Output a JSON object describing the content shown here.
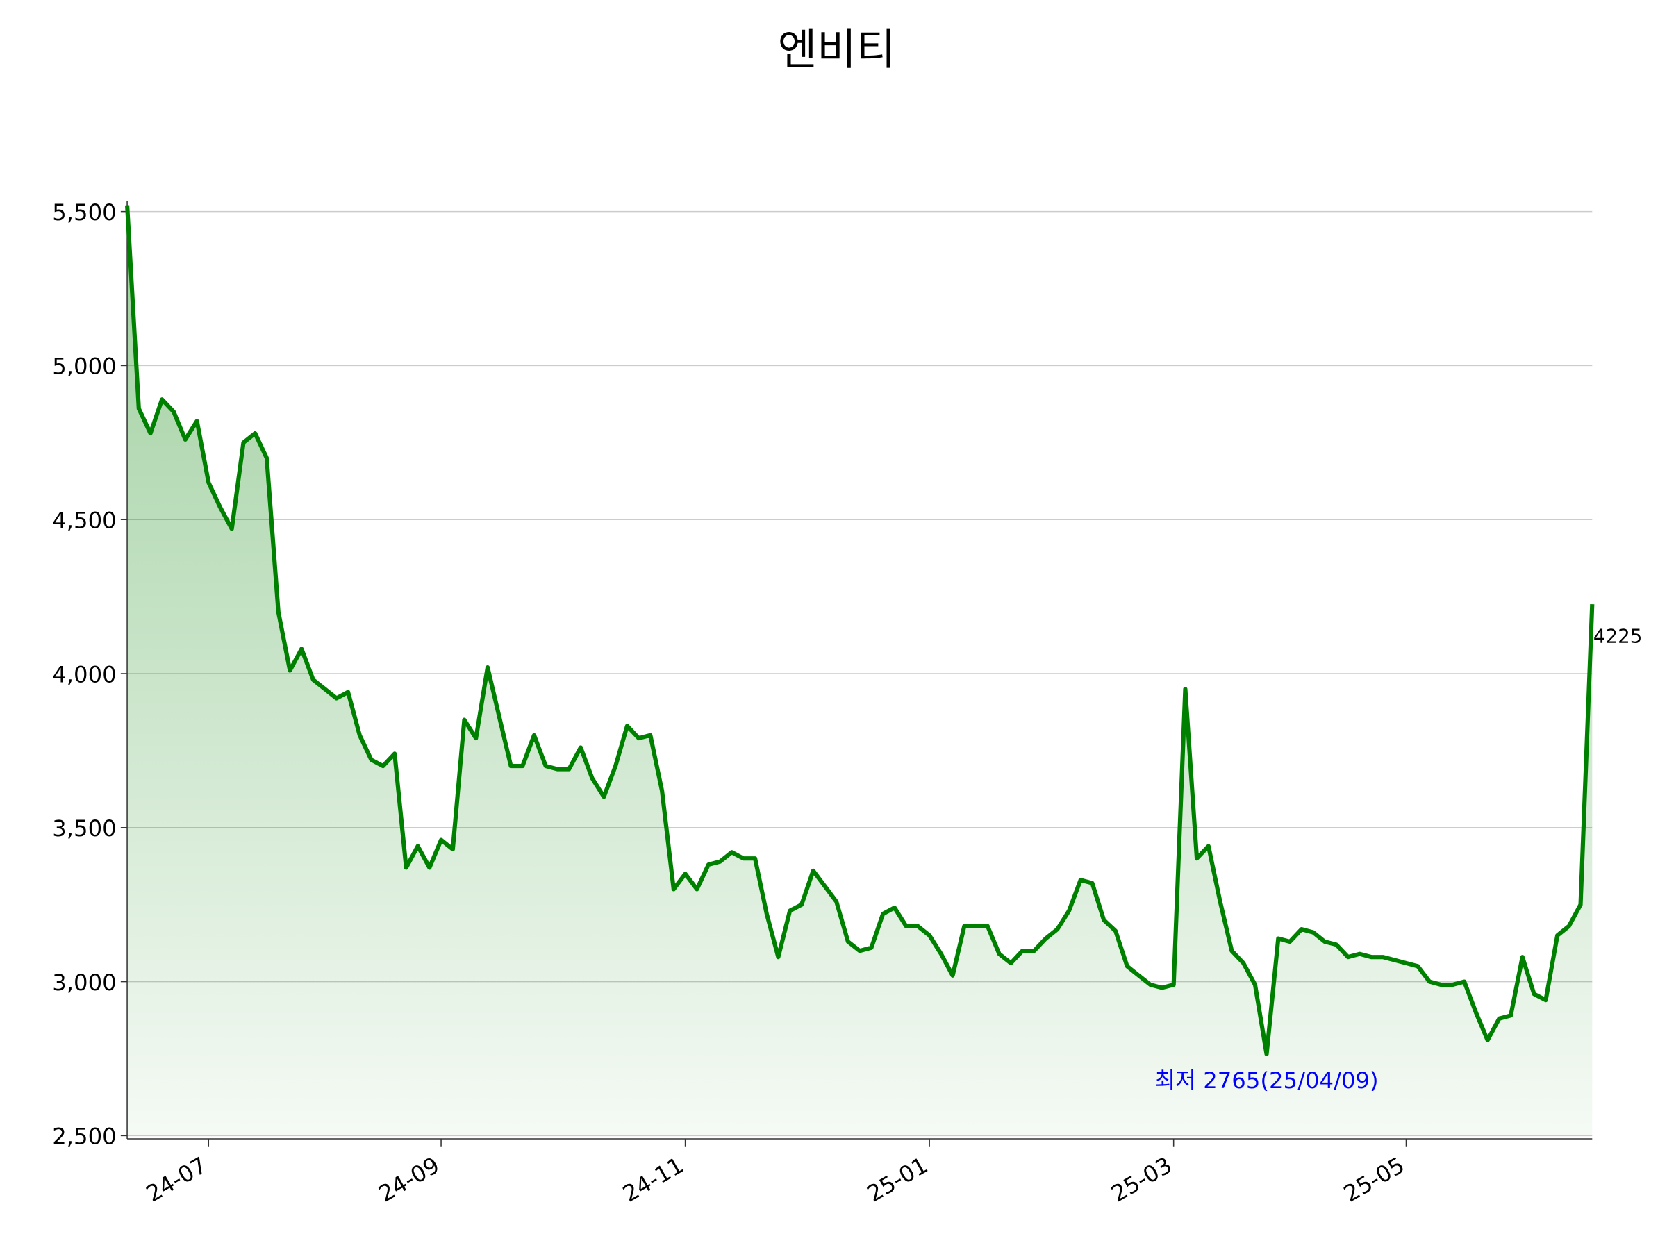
{
  "chart_data": {
    "type": "line",
    "title": "엔비티",
    "categories": [
      null,
      null,
      null,
      null,
      null,
      null,
      null,
      "24-07",
      null,
      null,
      null,
      null,
      null,
      null,
      null,
      null,
      null,
      null,
      null,
      null,
      null,
      null,
      null,
      null,
      null,
      null,
      null,
      "24-09",
      null,
      null,
      null,
      null,
      null,
      null,
      null,
      null,
      null,
      null,
      null,
      null,
      null,
      null,
      null,
      null,
      null,
      null,
      null,
      null,
      "24-11",
      null,
      null,
      null,
      null,
      null,
      null,
      null,
      null,
      null,
      null,
      null,
      null,
      null,
      null,
      null,
      null,
      null,
      null,
      null,
      null,
      "25-01",
      null,
      null,
      null,
      null,
      null,
      null,
      null,
      null,
      null,
      null,
      null,
      null,
      null,
      null,
      null,
      null,
      null,
      null,
      null,
      null,
      "25-03",
      null,
      null,
      null,
      null,
      null,
      null,
      null,
      null,
      null,
      null,
      null,
      null,
      null,
      null,
      null,
      null,
      null,
      null,
      null,
      "25-05",
      null,
      null,
      null,
      null,
      null,
      null,
      null,
      null,
      null,
      null,
      null,
      null,
      null,
      null,
      null,
      null
    ],
    "series": [
      {
        "name": "엔비티",
        "color": "#008000",
        "values": [
          5520,
          4860,
          4780,
          4890,
          4850,
          4760,
          4820,
          4620,
          4540,
          4470,
          4750,
          4780,
          4700,
          4200,
          4010,
          4080,
          3980,
          3950,
          3920,
          3940,
          3800,
          3720,
          3700,
          3740,
          3370,
          3440,
          3370,
          3460,
          3430,
          3850,
          3790,
          4020,
          3860,
          3700,
          3700,
          3800,
          3700,
          3690,
          3690,
          3760,
          3660,
          3600,
          3700,
          3830,
          3790,
          3800,
          3620,
          3300,
          3350,
          3300,
          3380,
          3390,
          3420,
          3400,
          3400,
          3220,
          3080,
          3230,
          3250,
          3360,
          3310,
          3260,
          3130,
          3100,
          3110,
          3220,
          3240,
          3180,
          3180,
          3150,
          3090,
          3020,
          3180,
          3180,
          3180,
          3090,
          3060,
          3100,
          3100,
          3140,
          3170,
          3230,
          3330,
          3320,
          3200,
          3165,
          3050,
          3020,
          2990,
          2980,
          2990,
          3950,
          3400,
          3440,
          3260,
          3100,
          3060,
          2990,
          2765,
          3140,
          3130,
          3170,
          3160,
          3130,
          3120,
          3080,
          3090,
          3080,
          3080,
          3070,
          3060,
          3050,
          3000,
          2990,
          2990,
          3000,
          2900,
          2810,
          2880,
          2890,
          3080,
          2960,
          2940,
          3150,
          3180,
          3250,
          4225
        ]
      }
    ],
    "ylim": [
      2500,
      5500
    ],
    "yticks": [
      {
        "value": 2500,
        "label": "2,500"
      },
      {
        "value": 3000,
        "label": "3,000"
      },
      {
        "value": 3500,
        "label": "3,500"
      },
      {
        "value": 4000,
        "label": "4,000"
      },
      {
        "value": 4500,
        "label": "4,500"
      },
      {
        "value": 5000,
        "label": "5,000"
      },
      {
        "value": 5500,
        "label": "5,500"
      }
    ],
    "grid": true,
    "annotations": [
      {
        "text": "최저 2765(25/04/09)",
        "color": "#0000ff"
      }
    ]
  }
}
